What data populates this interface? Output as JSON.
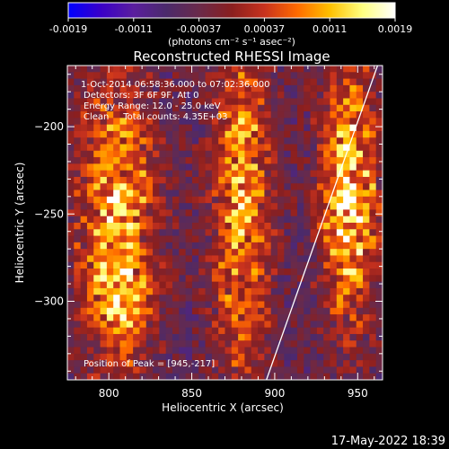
{
  "colorbar": {
    "ticks": [
      "-0.0019",
      "-0.0011",
      "-0.00037",
      "0.00037",
      "0.0011",
      "0.0019"
    ],
    "units_label": "(photons cm⁻² s⁻¹ asec⁻²)",
    "stops": [
      "#0000ff",
      "#3a00c8",
      "#5a1e9e",
      "#4b2a6b",
      "#6a2a4a",
      "#8a1f1f",
      "#c8321e",
      "#ff6a00",
      "#ffc000",
      "#ffff80",
      "#ffffff"
    ]
  },
  "chart_data": {
    "type": "heatmap",
    "title": "Reconstructed RHESSI Image",
    "xlabel": "Heliocentric X (arcsec)",
    "ylabel": "Heliocentric Y (arcsec)",
    "xlim": [
      775,
      965
    ],
    "ylim": [
      -345,
      -165
    ],
    "x_ticks": [
      800,
      850,
      900,
      950
    ],
    "y_ticks": [
      -200,
      -250,
      -300
    ],
    "annotations": [
      "1-Oct-2014 06:58:36.000 to 07:02:36.000",
      "Detectors: 3F 6F 9F, Att 0",
      "Energy Range: 12.0 - 25.0 keV",
      "Clean     Total counts: 4.35E+03"
    ],
    "peak_label": "Position of Peak = [945,-217]",
    "peak": [
      945,
      -217
    ],
    "limb_line": [
      [
        895,
        -345
      ],
      [
        962,
        -165
      ]
    ],
    "sources": [
      {
        "x": 805,
        "y": -255,
        "sx": 16,
        "sy": 60,
        "amp": 0.85
      },
      {
        "x": 808,
        "y": -300,
        "sx": 12,
        "sy": 14,
        "amp": 0.35
      },
      {
        "x": 880,
        "y": -245,
        "sx": 12,
        "sy": 70,
        "amp": 0.8
      },
      {
        "x": 945,
        "y": -240,
        "sx": 12,
        "sy": 50,
        "amp": 1.0
      }
    ],
    "background_level": -0.25,
    "grid": false
  },
  "footer": {
    "date": "17-May-2022 18:39"
  }
}
